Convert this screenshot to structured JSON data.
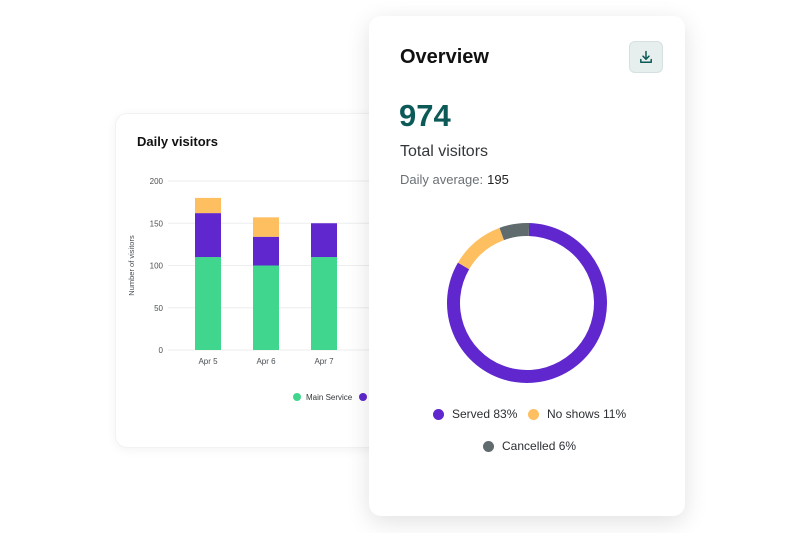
{
  "daily": {
    "title": "Daily visitors"
  },
  "overview": {
    "title": "Overview",
    "total_value": "974",
    "total_label": "Total visitors",
    "avg_label": "Daily average:",
    "avg_value": "195",
    "download_icon": "download-icon"
  },
  "chart_data": [
    {
      "type": "bar",
      "title": "Daily visitors",
      "ylabel": "Number of visitors",
      "xlabel": "",
      "ylim": [
        0,
        200
      ],
      "yticks": [
        0,
        50,
        100,
        150,
        200
      ],
      "grid": true,
      "stacked": true,
      "categories": [
        "Apr 5",
        "Apr 6",
        "Apr 7"
      ],
      "series": [
        {
          "name": "Main Service",
          "color": "#41d68d",
          "values": [
            110,
            100,
            110
          ]
        },
        {
          "name": "",
          "color": "#5f27cd",
          "values": [
            52,
            34,
            40
          ]
        },
        {
          "name": "",
          "color": "#fdbf60",
          "values": [
            18,
            23,
            0
          ]
        }
      ],
      "legend": [
        "Main Service"
      ],
      "legend_position": "bottom"
    },
    {
      "type": "pie",
      "donut": true,
      "slices": [
        {
          "label": "Served",
          "value": 83,
          "display": "Served 83%",
          "color": "#5f27cd"
        },
        {
          "label": "No shows",
          "value": 11,
          "display": "No shows 11%",
          "color": "#fdbf60"
        },
        {
          "label": "Cancelled",
          "value": 6,
          "display": "Cancelled 6%",
          "color": "#5f6b6d"
        }
      ],
      "legend_position": "bottom"
    }
  ]
}
